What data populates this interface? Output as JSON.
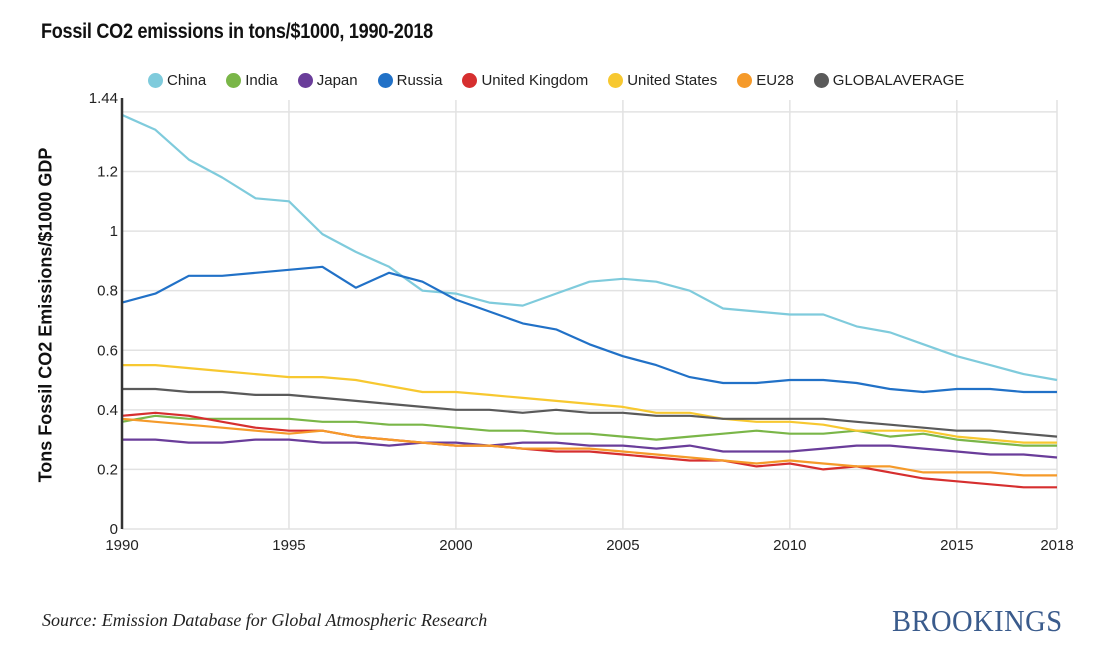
{
  "chart_data": {
    "type": "line",
    "title": "Fossil CO2 emissions in tons/$1000, 1990-2018",
    "xlabel": "",
    "ylabel": "Tons Fossil CO2 Emissions/$1000 GDP",
    "xlim": [
      1990,
      2018
    ],
    "ylim": [
      0,
      1.44
    ],
    "xticks": [
      1990,
      1995,
      2000,
      2005,
      2010,
      2015,
      2018
    ],
    "yticks": [
      0,
      0.2,
      0.4,
      0.6,
      0.8,
      1,
      1.2,
      1.44
    ],
    "ytick_labels": [
      "0",
      "0.2",
      "0.4",
      "0.6",
      "0.8",
      "1",
      "1.2",
      "1.44"
    ],
    "gridlines_y": [
      0.2,
      0.4,
      0.6,
      0.8,
      1,
      1.2,
      1.4
    ],
    "grid": true,
    "legend_position": "top",
    "x": [
      1990,
      1991,
      1992,
      1993,
      1994,
      1995,
      1996,
      1997,
      1998,
      1999,
      2000,
      2001,
      2002,
      2003,
      2004,
      2005,
      2006,
      2007,
      2008,
      2009,
      2010,
      2011,
      2012,
      2013,
      2014,
      2015,
      2016,
      2017,
      2018
    ],
    "series": [
      {
        "name": "China",
        "color": "#7fcbdc",
        "values": [
          1.39,
          1.34,
          1.24,
          1.18,
          1.11,
          1.1,
          0.99,
          0.93,
          0.88,
          0.8,
          0.79,
          0.76,
          0.75,
          0.79,
          0.83,
          0.84,
          0.83,
          0.8,
          0.74,
          0.73,
          0.72,
          0.72,
          0.68,
          0.66,
          0.62,
          0.58,
          0.55,
          0.52,
          0.5
        ]
      },
      {
        "name": "India",
        "color": "#7ab648",
        "values": [
          0.36,
          0.38,
          0.37,
          0.37,
          0.37,
          0.37,
          0.36,
          0.36,
          0.35,
          0.35,
          0.34,
          0.33,
          0.33,
          0.32,
          0.32,
          0.31,
          0.3,
          0.31,
          0.32,
          0.33,
          0.32,
          0.32,
          0.33,
          0.31,
          0.32,
          0.3,
          0.29,
          0.28,
          0.28
        ]
      },
      {
        "name": "Japan",
        "color": "#6a3d9a",
        "values": [
          0.3,
          0.3,
          0.29,
          0.29,
          0.3,
          0.3,
          0.29,
          0.29,
          0.28,
          0.29,
          0.29,
          0.28,
          0.29,
          0.29,
          0.28,
          0.28,
          0.27,
          0.28,
          0.26,
          0.26,
          0.26,
          0.27,
          0.28,
          0.28,
          0.27,
          0.26,
          0.25,
          0.25,
          0.24
        ]
      },
      {
        "name": "Russia",
        "color": "#2171c7",
        "values": [
          0.76,
          0.79,
          0.85,
          0.85,
          0.86,
          0.87,
          0.88,
          0.81,
          0.86,
          0.83,
          0.77,
          0.73,
          0.69,
          0.67,
          0.62,
          0.58,
          0.55,
          0.51,
          0.49,
          0.49,
          0.5,
          0.5,
          0.49,
          0.47,
          0.46,
          0.47,
          0.47,
          0.46,
          0.46
        ]
      },
      {
        "name": "United Kingdom",
        "color": "#d62f2f",
        "values": [
          0.38,
          0.39,
          0.38,
          0.36,
          0.34,
          0.33,
          0.33,
          0.31,
          0.3,
          0.29,
          0.28,
          0.28,
          0.27,
          0.26,
          0.26,
          0.25,
          0.24,
          0.23,
          0.23,
          0.21,
          0.22,
          0.2,
          0.21,
          0.19,
          0.17,
          0.16,
          0.15,
          0.14,
          0.14
        ]
      },
      {
        "name": "United States",
        "color": "#f7c830",
        "values": [
          0.55,
          0.55,
          0.54,
          0.53,
          0.52,
          0.51,
          0.51,
          0.5,
          0.48,
          0.46,
          0.46,
          0.45,
          0.44,
          0.43,
          0.42,
          0.41,
          0.39,
          0.39,
          0.37,
          0.36,
          0.36,
          0.35,
          0.33,
          0.33,
          0.33,
          0.31,
          0.3,
          0.29,
          0.29
        ]
      },
      {
        "name": "EU28",
        "color": "#f59a2a",
        "values": [
          0.37,
          0.36,
          0.35,
          0.34,
          0.33,
          0.32,
          0.33,
          0.31,
          0.3,
          0.29,
          0.28,
          0.28,
          0.27,
          0.27,
          0.27,
          0.26,
          0.25,
          0.24,
          0.23,
          0.22,
          0.23,
          0.22,
          0.21,
          0.21,
          0.19,
          0.19,
          0.19,
          0.18,
          0.18
        ]
      },
      {
        "name": "GLOBALAVERAGE",
        "color": "#5a5a5a",
        "values": [
          0.47,
          0.47,
          0.46,
          0.46,
          0.45,
          0.45,
          0.44,
          0.43,
          0.42,
          0.41,
          0.4,
          0.4,
          0.39,
          0.4,
          0.39,
          0.39,
          0.38,
          0.38,
          0.37,
          0.37,
          0.37,
          0.37,
          0.36,
          0.35,
          0.34,
          0.33,
          0.33,
          0.32,
          0.31
        ]
      }
    ]
  },
  "footer": {
    "source": "Source: Emission Database for Global Atmospheric Research",
    "brand": "BROOKINGS"
  }
}
